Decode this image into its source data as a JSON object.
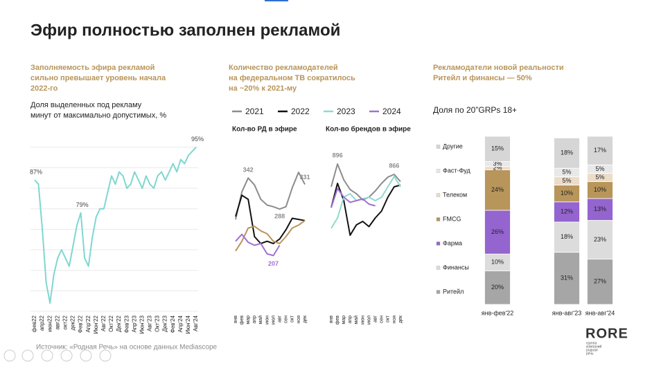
{
  "title": "Эфир полностью заполнен рекламой",
  "headings": [
    [
      "Заполняемость эфира рекламой",
      "сильно превышает уровень начала",
      "2022-го"
    ],
    [
      "Количество рекламодателей",
      "на федеральном ТВ сократилось",
      "на ~20% к 2021-му"
    ],
    [
      "Рекламодатели новой реальности",
      "Ритейл и финансы — 50%"
    ]
  ],
  "source": "Источник: «Родная Речь» на основе данных Mediascope",
  "logo": {
    "name": "RORE",
    "tagline": [
      "группа",
      "компаний",
      "родная",
      "речь"
    ]
  },
  "chart_data": [
    {
      "type": "line",
      "subtitle": [
        "Доля выделенных под рекламу",
        "минут от максимально допустимых, %"
      ],
      "categories": [
        "фев22",
        null,
        "апр22",
        null,
        "июн22",
        null,
        "авг22",
        null,
        "окт22",
        null,
        "дек22",
        null,
        "Фев'22",
        null,
        "Апр'22",
        null,
        "Июн'22",
        null,
        "Авг'22",
        null,
        "Окт'22",
        null,
        "Дек'22",
        null,
        "Фев'23",
        null,
        "Апр'23",
        null,
        "Июн'23",
        null,
        "Авг'23",
        null,
        "Окт'23",
        null,
        "Дек'23",
        null,
        "Фев'24",
        null,
        "Апр'24",
        null,
        "Июн'24",
        null,
        "Авг'24"
      ],
      "values": [
        87,
        86,
        75,
        62,
        57,
        64,
        68,
        70,
        68,
        66,
        71,
        76,
        79,
        68,
        66,
        73,
        78,
        80,
        80,
        84,
        88,
        86,
        89,
        88,
        85,
        86,
        89,
        87,
        85,
        88,
        86,
        85,
        88,
        89,
        87,
        89,
        91,
        89,
        92,
        91,
        93,
        94,
        95
      ],
      "value_labels": [
        "87%",
        null,
        null,
        null,
        null,
        null,
        null,
        null,
        null,
        null,
        null,
        null,
        "79%",
        null,
        null,
        null,
        null,
        null,
        null,
        null,
        null,
        null,
        null,
        null,
        null,
        null,
        null,
        null,
        null,
        null,
        null,
        null,
        null,
        null,
        null,
        null,
        null,
        null,
        null,
        null,
        null,
        null,
        "95%"
      ],
      "color": "#7fd6d0",
      "ylim": [
        55,
        98
      ],
      "yticks": [
        55,
        60,
        65,
        70,
        75,
        80,
        85,
        90,
        95
      ],
      "grid": true
    },
    {
      "type": "line",
      "title": "Кол-во РД в эфире",
      "categories": [
        "янв",
        "фев",
        "мар",
        "апр",
        "май",
        "июн",
        "июл",
        "авг",
        "сен",
        "окт",
        "ноя",
        "дек"
      ],
      "series": [
        {
          "name": "2021",
          "color": "#8c8c8c",
          "values": [
            270,
            318,
            342,
            330,
            305,
            295,
            292,
            288,
            292,
            325,
            352,
            331
          ],
          "value_labels": [
            null,
            null,
            "342",
            null,
            null,
            null,
            null,
            "288",
            null,
            null,
            null,
            "331"
          ]
        },
        {
          "name": "2022",
          "color": "#111111",
          "values": [
            275,
            312,
            305,
            240,
            228,
            232,
            228,
            236,
            252,
            272,
            270,
            268
          ]
        },
        {
          "name": "2023",
          "color": "#b8955a",
          "values": [
            215,
            232,
            255,
            258,
            250,
            245,
            232,
            228,
            240,
            255,
            260,
            268
          ]
        },
        {
          "name": "2024",
          "color": "#a070d0",
          "values": [
            232,
            244,
            230,
            225,
            228,
            210,
            207,
            225,
            null,
            null,
            null,
            null
          ],
          "value_labels": [
            null,
            null,
            null,
            null,
            null,
            null,
            "207",
            null,
            null,
            null,
            null,
            null
          ]
        }
      ],
      "ylim": [
        110,
        405
      ]
    },
    {
      "type": "line",
      "title": "Кол-во брендов в эфире",
      "categories": [
        "янв",
        "фев",
        "мар",
        "апр",
        "май",
        "июн",
        "июл",
        "авг",
        "сен",
        "окт",
        "ноя",
        "дек"
      ],
      "series": [
        {
          "name": "2021",
          "color": "#8c8c8c",
          "values": [
            830,
            896,
            850,
            822,
            810,
            792,
            800,
            818,
            840,
            858,
            866,
            845
          ],
          "value_labels": [
            null,
            "896",
            null,
            null,
            null,
            null,
            null,
            null,
            null,
            null,
            "866",
            null
          ]
        },
        {
          "name": "2022",
          "color": "#111111",
          "values": [
            770,
            840,
            790,
            690,
            720,
            730,
            715,
            740,
            760,
            800,
            830,
            835
          ]
        },
        {
          "name": "2023",
          "color": "#8fd8d2",
          "values": [
            710,
            740,
            800,
            810,
            790,
            795,
            800,
            790,
            800,
            830,
            860,
            830
          ]
        },
        {
          "name": "2024",
          "color": "#a070d0",
          "values": [
            770,
            825,
            800,
            785,
            790,
            795,
            780,
            775,
            null,
            null,
            null,
            null
          ]
        }
      ],
      "ylim": [
        470,
        960
      ]
    },
    {
      "type": "stacked_bar",
      "subtitle": "Доля по 20”GRPs 18+",
      "categories": [
        "янв-фев'22",
        "янв-авг'23",
        "янв-авг'24"
      ],
      "series": [
        {
          "name": "Ритейл",
          "color": "#a6a6a6",
          "values": [
            20,
            31,
            27
          ],
          "value_labels": [
            "20%",
            "31%",
            "27%"
          ]
        },
        {
          "name": "Финансы",
          "color": "#dcdcdc",
          "values": [
            10,
            18,
            23
          ],
          "value_labels": [
            "10%",
            "18%",
            "23%"
          ]
        },
        {
          "name": "Фарма",
          "color": "#9464cf",
          "values": [
            26,
            12,
            13
          ],
          "value_labels": [
            "26%",
            "12%",
            "13%"
          ]
        },
        {
          "name": "FMCG",
          "color": "#b8955a",
          "values": [
            24,
            10,
            10
          ],
          "value_labels": [
            "24%",
            "10%",
            "10%"
          ]
        },
        {
          "name": "Телеком",
          "color": "#ecdcc8",
          "values": [
            2,
            5,
            5
          ],
          "value_labels": [
            "2%",
            "5%",
            "5%"
          ]
        },
        {
          "name": "Фаст-Фуд",
          "color": "#e8e8e8",
          "values": [
            3,
            5,
            5
          ],
          "value_labels": [
            "3%",
            "5%",
            "5%"
          ]
        },
        {
          "name": "Другие",
          "color": "#d6d6d6",
          "values": [
            15,
            18,
            17
          ],
          "value_labels": [
            "15%",
            "18%",
            "17%"
          ]
        }
      ],
      "ylim": [
        0,
        100
      ]
    }
  ]
}
